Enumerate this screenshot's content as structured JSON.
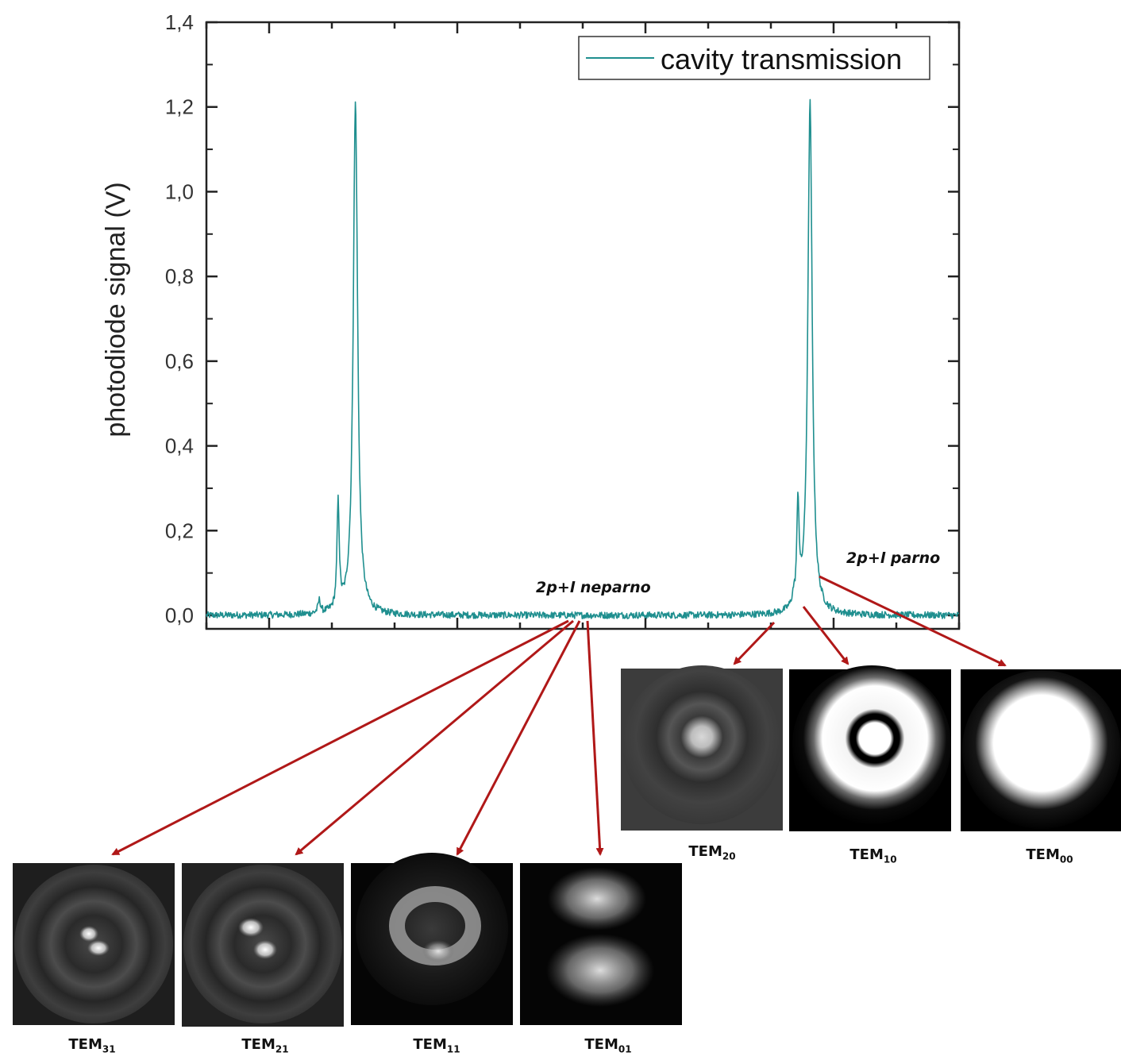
{
  "chart_data": {
    "type": "line",
    "title": "",
    "xlabel": "",
    "ylabel": "photodiode signal (V)",
    "ylim": [
      0.0,
      1.4
    ],
    "yticks": [
      "0,0",
      "0,2",
      "0,4",
      "0,6",
      "0,8",
      "1,0",
      "1,2",
      "1,4"
    ],
    "xticks_labeled": false,
    "grid": false,
    "legend": {
      "position": "top-right"
    },
    "series": [
      {
        "name": "cavity transmission",
        "color": "#1f8f8f",
        "peaks": [
          {
            "x": 0.15,
            "y": 0.03
          },
          {
            "x": 0.175,
            "y": 0.25
          },
          {
            "x": 0.198,
            "y": 1.21
          },
          {
            "x": 0.78,
            "y": 0.02
          },
          {
            "x": 0.786,
            "y": 0.24
          },
          {
            "x": 0.802,
            "y": 1.21
          }
        ],
        "baseline": 0.0
      }
    ],
    "annotations": [
      {
        "text": "2p+l neparno"
      },
      {
        "text": "2p+l parno"
      }
    ]
  },
  "mode_images": {
    "neparno": [
      {
        "base": "TEM",
        "sub": "31",
        "pattern": "tem31"
      },
      {
        "base": "TEM",
        "sub": "21",
        "pattern": "tem21"
      },
      {
        "base": "TEM",
        "sub": "11",
        "pattern": "tem11"
      },
      {
        "base": "TEM",
        "sub": "01",
        "pattern": "tem01"
      }
    ],
    "parno": [
      {
        "base": "TEM",
        "sub": "20",
        "pattern": "tem20"
      },
      {
        "base": "TEM",
        "sub": "10",
        "pattern": "tem10"
      },
      {
        "base": "TEM",
        "sub": "00",
        "pattern": "tem00"
      }
    ]
  },
  "colors": {
    "trace": "#1f8f8f",
    "arrow": "#b01818",
    "axis": "#222222"
  }
}
